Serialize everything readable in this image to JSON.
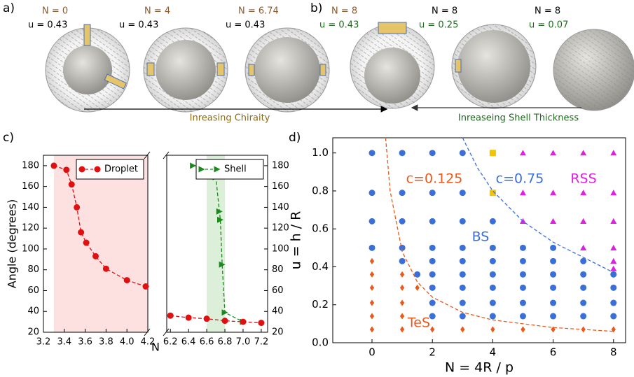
{
  "header": {
    "panel_labels": [
      "a)",
      "b)",
      "c)",
      "d)"
    ],
    "cases": [
      {
        "N": "N = 0",
        "u": "u = 0.43"
      },
      {
        "N": "N = 4",
        "u": "u = 0.43"
      },
      {
        "N": "N = 6.74",
        "u": "u = 0.43"
      },
      {
        "N": "N = 8",
        "u": "u = 0.43"
      },
      {
        "N": "N = 8",
        "u": "u = 0.25"
      },
      {
        "N": "N = 8",
        "u": "u = 0.07"
      }
    ],
    "arrows": [
      "Inreasing Chiraity",
      "Inreaseing Shell Thickness"
    ]
  },
  "chart_data": [
    {
      "type": "line",
      "ylabel": "Angle (degrees)",
      "xlim": [
        3.2,
        4.2
      ],
      "xticks": [
        3.2,
        3.4,
        3.6,
        3.8,
        {
          "value": 4.0,
          "label": "4.0"
        },
        4.2
      ],
      "ylim": [
        20,
        190
      ],
      "yticks": [
        20,
        40,
        60,
        80,
        100,
        120,
        140,
        160,
        180
      ],
      "yaxis_side": "left",
      "span": {
        "x": [
          3.3,
          4.2
        ],
        "color": "#fde0e0"
      },
      "legend": "upper right",
      "series": [
        {
          "name": "Droplet",
          "color": "#e01010",
          "marker": "o",
          "line": "dashed",
          "x": [
            3.3,
            3.42,
            3.47,
            3.52,
            3.56,
            3.61,
            3.7,
            3.8,
            4.0,
            4.18
          ],
          "values": [
            180,
            176,
            162,
            140,
            116,
            106,
            93,
            81,
            70,
            64
          ]
        }
      ]
    },
    {
      "type": "line",
      "xlabel": "N",
      "xlim": [
        6.16,
        7.27
      ],
      "xticks": [
        6.2,
        6.4,
        6.6,
        6.8,
        {
          "value": 7.0,
          "label": "7.0"
        },
        7.2
      ],
      "ylim": [
        20,
        190
      ],
      "yticks": [
        20,
        40,
        60,
        80,
        100,
        120,
        140,
        160,
        180
      ],
      "yaxis_side": "right",
      "span": {
        "x": [
          6.6,
          6.8
        ],
        "color": "#dcefd8"
      },
      "legend": "upper right",
      "series": [
        {
          "name": "Shell",
          "color": "#1a8a1a",
          "marker": ">",
          "line": "dashed",
          "x": [
            6.45,
            6.6,
            6.64,
            6.66,
            6.7,
            6.74,
            6.75,
            6.77,
            6.8,
            7.0
          ],
          "values": [
            180,
            180,
            175,
            170,
            169,
            136,
            128,
            85,
            39,
            30
          ]
        },
        {
          "color": "#e01010",
          "marker": "o",
          "line": "dashed",
          "x": [
            6.2,
            6.4,
            6.6,
            6.8,
            7.0,
            7.2
          ],
          "values": [
            36,
            34,
            33,
            31,
            30,
            29
          ]
        }
      ]
    },
    {
      "type": "scatter",
      "xlabel": "N = 4R / p",
      "ylabel": "u = h / R",
      "xlim": [
        -1.3,
        8.4
      ],
      "xticks": [
        0,
        2,
        4,
        6,
        8
      ],
      "ylim": [
        0,
        1.08
      ],
      "yticks": [
        {
          "value": 0,
          "label": "0.0"
        },
        0.2,
        0.4,
        0.6,
        0.8,
        {
          "value": 1,
          "label": "1.0"
        }
      ],
      "yaxis_side": "left",
      "series": [
        {
          "name": "BS",
          "color": "#3a6fd8",
          "marker": "o",
          "x": [
            0,
            0,
            0,
            0,
            1,
            1,
            1,
            1,
            1,
            1.5,
            2,
            2,
            2,
            2,
            2,
            2,
            2,
            2,
            2,
            3,
            3,
            3,
            3,
            3,
            3,
            3,
            3,
            3,
            4,
            4,
            4,
            4,
            4,
            4,
            4,
            5,
            5,
            5,
            5,
            5,
            5,
            6,
            6,
            6,
            6,
            6,
            6,
            7,
            7,
            7,
            7,
            7,
            8,
            8,
            8,
            8
          ],
          "values": [
            1.0,
            0.79,
            0.64,
            0.5,
            1.0,
            0.79,
            0.64,
            0.5,
            0.43,
            0.36,
            1.0,
            0.79,
            0.64,
            0.5,
            0.43,
            0.36,
            0.29,
            0.21,
            0.14,
            1.0,
            0.79,
            0.64,
            0.5,
            0.43,
            0.36,
            0.29,
            0.21,
            0.14,
            0.64,
            0.5,
            0.43,
            0.36,
            0.29,
            0.21,
            0.14,
            0.5,
            0.43,
            0.36,
            0.29,
            0.21,
            0.14,
            0.5,
            0.43,
            0.36,
            0.29,
            0.21,
            0.14,
            0.43,
            0.36,
            0.29,
            0.21,
            0.14,
            0.36,
            0.29,
            0.21,
            0.14
          ]
        },
        {
          "name": "TeS",
          "color": "#ea5a1c",
          "marker": "D",
          "x": [
            0,
            0,
            0,
            0,
            0,
            0,
            1,
            1,
            1,
            1,
            1,
            1.5,
            2,
            3,
            4,
            5,
            6,
            7,
            8
          ],
          "values": [
            0.43,
            0.36,
            0.29,
            0.21,
            0.14,
            0.07,
            0.36,
            0.29,
            0.21,
            0.14,
            0.07,
            0.29,
            0.07,
            0.07,
            0.07,
            0.07,
            0.07,
            0.07,
            0.07
          ]
        },
        {
          "name": "RSS",
          "color": "#e020e0",
          "marker": "^",
          "x": [
            5,
            5,
            5,
            6,
            6,
            6,
            7,
            7,
            7,
            7,
            8,
            8,
            8,
            8,
            8,
            8
          ],
          "values": [
            1.0,
            0.79,
            0.64,
            1.0,
            0.79,
            0.64,
            1.0,
            0.79,
            0.64,
            0.5,
            1.0,
            0.79,
            0.64,
            0.5,
            0.43,
            0.39
          ]
        },
        {
          "color": "#f2c500",
          "marker": "s",
          "x": [
            4,
            4
          ],
          "values": [
            1.0,
            0.79
          ]
        },
        {
          "name": "c=0.125",
          "color": "#ea5a1c",
          "line": "dashed",
          "x": [
            0.45,
            0.6,
            1,
            1.5,
            2,
            3,
            4,
            6,
            8
          ],
          "values": [
            1.08,
            0.8,
            0.48,
            0.32,
            0.24,
            0.16,
            0.12,
            0.08,
            0.06
          ]
        },
        {
          "name": "c=0.75",
          "color": "#3a6fd8",
          "line": "dashed",
          "x": [
            3,
            3.5,
            4,
            5,
            6,
            7,
            8
          ],
          "values": [
            1.08,
            0.92,
            0.8,
            0.64,
            0.53,
            0.45,
            0.37
          ]
        }
      ]
    }
  ]
}
